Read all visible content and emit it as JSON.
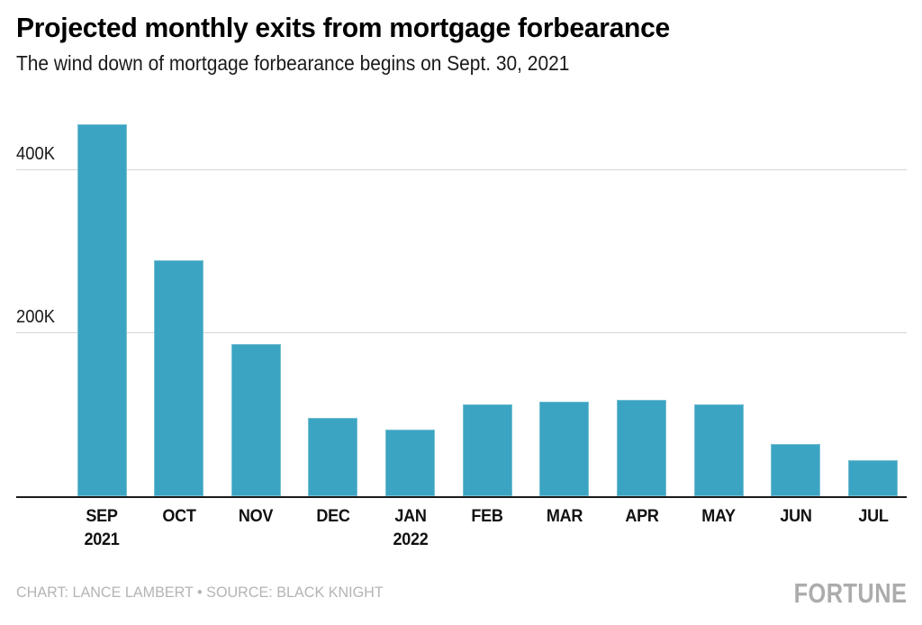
{
  "header": {
    "title": "Projected monthly exits from mortgage forbearance",
    "subtitle": "The wind down of mortgage forbearance begins on Sept. 30, 2021"
  },
  "footer": {
    "credit": "CHART: LANCE LAMBERT • SOURCE: BLACK KNIGHT",
    "logo": "FORTUNE"
  },
  "chart_data": {
    "type": "bar",
    "title": "Projected monthly exits from mortgage forbearance",
    "subtitle": "The wind down of mortgage forbearance begins on Sept. 30, 2021",
    "categories": [
      {
        "label": "SEP",
        "sublabel": "2021"
      },
      {
        "label": "OCT",
        "sublabel": ""
      },
      {
        "label": "NOV",
        "sublabel": ""
      },
      {
        "label": "DEC",
        "sublabel": ""
      },
      {
        "label": "JAN",
        "sublabel": "2022"
      },
      {
        "label": "FEB",
        "sublabel": ""
      },
      {
        "label": "MAR",
        "sublabel": ""
      },
      {
        "label": "APR",
        "sublabel": ""
      },
      {
        "label": "MAY",
        "sublabel": ""
      },
      {
        "label": "JUN",
        "sublabel": ""
      },
      {
        "label": "JUL",
        "sublabel": ""
      }
    ],
    "values": [
      455000,
      288000,
      186000,
      96000,
      81000,
      112000,
      116000,
      118000,
      112000,
      64000,
      44000
    ],
    "xlabel": "",
    "ylabel": "",
    "ylim": [
      0,
      460000
    ],
    "yticks": [
      {
        "value": 400000,
        "label": "400K"
      },
      {
        "value": 200000,
        "label": "200K"
      }
    ],
    "grid": true,
    "legend": "none",
    "bar_color": "#3BA4C2",
    "gridline_color": "#d6d6d6",
    "axis_color": "#1a1a1a"
  }
}
